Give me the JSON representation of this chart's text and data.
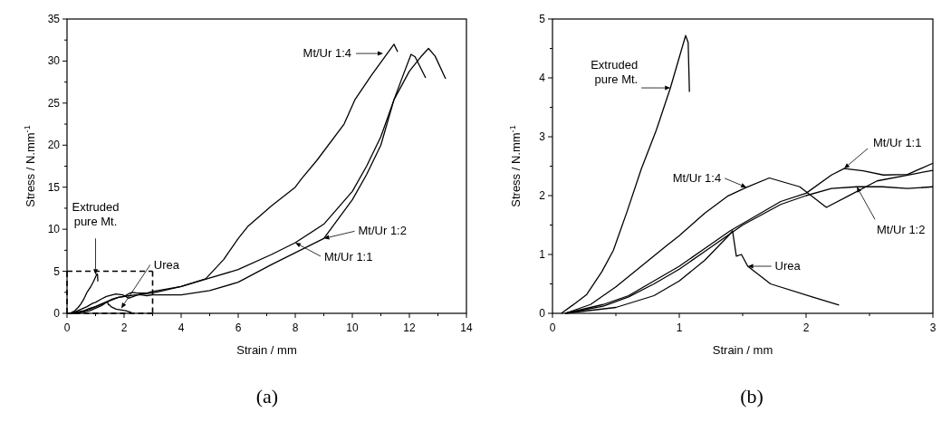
{
  "chart_data": [
    {
      "type": "line",
      "title": "(a)",
      "xlabel": "Strain / mm",
      "ylabel": "Stress / N.mm$^{-1}$",
      "xlim": [
        0,
        14
      ],
      "ylim": [
        0,
        35
      ],
      "xticks": [
        0,
        {
          "value": 1,
          "label": null
        },
        2,
        {
          "value": 3,
          "label": null
        },
        4,
        {
          "value": 5,
          "label": null
        },
        6,
        {
          "value": 7,
          "label": null
        },
        8,
        {
          "value": 9,
          "label": null
        },
        10,
        {
          "value": 11,
          "label": null
        },
        12,
        {
          "value": 13,
          "label": null
        },
        14
      ],
      "yticks": [
        0,
        {
          "value": 2.5,
          "label": null
        },
        5,
        {
          "value": 7.5,
          "label": null
        },
        10,
        {
          "value": 12.5,
          "label": null
        },
        15,
        {
          "value": 17.5,
          "label": null
        },
        20,
        {
          "value": 22.5,
          "label": null
        },
        25,
        {
          "value": 27.5,
          "label": null
        },
        30,
        {
          "value": 32.5,
          "label": null
        },
        35
      ],
      "series": [
        {
          "color": "#000000",
          "x": [
            0.07,
            0.16,
            0.27,
            0.39,
            0.48,
            0.59,
            0.7,
            0.82,
            0.93,
            1.05,
            1.07,
            1.08
          ],
          "values": [
            0,
            0.1,
            0.3,
            0.7,
            1.1,
            1.7,
            2.5,
            3.1,
            3.8,
            4.7,
            4.6,
            3.8
          ]
        },
        {
          "color": "#000000",
          "x": [
            0.1,
            0.5,
            0.8,
            1.0,
            1.2,
            1.38,
            1.42,
            1.45,
            1.49,
            1.54,
            1.72,
            2.06,
            2.26
          ],
          "values": [
            0,
            0.1,
            0.3,
            0.6,
            0.9,
            1.3,
            1.4,
            1.0,
            1.0,
            0.8,
            0.5,
            0.3,
            0.1
          ]
        },
        {
          "color": "#000000",
          "x": [
            0.1,
            0.3,
            0.5,
            0.7,
            0.9,
            1.0,
            1.2,
            1.38,
            1.71,
            1.95,
            2.16,
            2.33,
            2.56,
            3.0,
            4.0,
            4.86,
            5.49,
            6.0,
            6.33,
            7.17,
            8.0,
            8.22,
            8.76,
            9.71,
            10.09,
            10.67,
            11.46,
            11.59
          ],
          "values": [
            0,
            0.2,
            0.5,
            0.8,
            1.2,
            1.3,
            1.7,
            2.0,
            2.3,
            2.2,
            1.8,
            2.0,
            2.3,
            2.4,
            3.2,
            4.1,
            6.4,
            8.9,
            10.3,
            12.8,
            15,
            16,
            18.2,
            22.5,
            25.4,
            28.3,
            32,
            31.1
          ]
        },
        {
          "color": "#000000",
          "x": [
            0.1,
            0.4,
            0.6,
            0.8,
            1.0,
            1.2,
            1.4,
            1.6,
            1.8,
            2.0,
            2.2,
            2.3,
            2.45,
            2.61,
            2.8,
            3.0,
            3.5,
            4.0,
            4.8,
            6.0,
            7.17,
            8.0,
            9.0,
            10.0,
            10.5,
            11.0,
            11.46,
            12.0,
            12.4,
            12.67,
            12.9,
            13.27
          ],
          "values": [
            0,
            0.2,
            0.3,
            0.6,
            0.8,
            1.1,
            1.4,
            1.7,
            1.9,
            2.0,
            2.4,
            2.5,
            2.4,
            2.4,
            2.4,
            2.6,
            2.9,
            3.2,
            4.0,
            5.2,
            7.0,
            8.4,
            10.6,
            14.5,
            17.5,
            21,
            25.4,
            28.8,
            30.5,
            31.5,
            30.6,
            27.9
          ]
        },
        {
          "color": "#000000",
          "x": [
            0.1,
            0.4,
            0.6,
            0.8,
            1.0,
            1.2,
            1.5,
            1.8,
            2.0,
            2.2,
            2.4,
            2.6,
            2.8,
            3.0,
            4.0,
            5.0,
            6.0,
            7.17,
            9.0,
            10.0,
            10.5,
            11.0,
            11.46,
            11.8,
            12.06,
            12.2,
            12.57
          ],
          "values": [
            0,
            0.1,
            0.3,
            0.5,
            0.8,
            1.1,
            1.5,
            1.9,
            2.0,
            2.1,
            2.2,
            2.2,
            2.1,
            2.2,
            2.2,
            2.7,
            3.7,
            5.8,
            8.9,
            13.5,
            16.5,
            20,
            25.4,
            28.5,
            30.8,
            30.5,
            28
          ]
        }
      ],
      "annotations": [
        {
          "text": "Extruded\npure Mt.",
          "x": 1.0,
          "y": 4.6
        },
        {
          "text": "Urea",
          "x": 1.9,
          "y": 0.6
        },
        {
          "text": "Mt/Ur 1:4",
          "x": 11.08,
          "y": 30.9
        },
        {
          "text": "Mt/Ur 1:2",
          "x": 9.0,
          "y": 8.9
        },
        {
          "text": "Mt/Ur 1:1",
          "x": 8.0,
          "y": 8.4
        }
      ]
    },
    {
      "type": "line",
      "title": "(b)",
      "xlabel": "Strain / mm",
      "ylabel": "Stress / N.mm$^{-1}$",
      "xlim": [
        0,
        3
      ],
      "ylim": [
        0,
        5
      ],
      "xticks": [
        0,
        {
          "value": 0.5,
          "label": null
        },
        1,
        {
          "value": 1.5,
          "label": null
        },
        2,
        {
          "value": 2.5,
          "label": null
        },
        3
      ],
      "yticks": [
        0,
        {
          "value": 0.5,
          "label": null
        },
        1,
        {
          "value": 1.5,
          "label": null
        },
        2,
        {
          "value": 2.5,
          "label": null
        },
        3,
        {
          "value": 3.5,
          "label": null
        },
        4,
        {
          "value": 4.5,
          "label": null
        },
        5
      ],
      "series": [
        {
          "color": "#000000",
          "x": [
            0.07,
            0.16,
            0.27,
            0.39,
            0.48,
            0.59,
            0.7,
            0.82,
            0.93,
            1.05,
            1.07,
            1.08
          ],
          "values": [
            0,
            0.14,
            0.32,
            0.71,
            1.07,
            1.74,
            2.45,
            3.12,
            3.83,
            4.72,
            4.6,
            3.76
          ]
        },
        {
          "color": "#000000",
          "x": [
            0.1,
            0.5,
            0.8,
            1.0,
            1.2,
            1.38,
            1.42,
            1.45,
            1.49,
            1.54,
            1.72,
            2.06,
            2.26
          ],
          "values": [
            0,
            0.1,
            0.3,
            0.55,
            0.9,
            1.3,
            1.4,
            0.97,
            1.0,
            0.8,
            0.5,
            0.27,
            0.14
          ]
        },
        {
          "color": "#000000",
          "x": [
            0.1,
            0.3,
            0.5,
            0.7,
            0.9,
            1.0,
            1.2,
            1.38,
            1.53,
            1.71,
            1.95,
            2.16,
            2.33,
            2.56,
            3.0
          ],
          "values": [
            0,
            0.15,
            0.45,
            0.8,
            1.15,
            1.32,
            1.7,
            1.99,
            2.14,
            2.3,
            2.15,
            1.8,
            1.99,
            2.25,
            2.43
          ]
        },
        {
          "color": "#000000",
          "x": [
            0.1,
            0.4,
            0.6,
            0.8,
            1.0,
            1.2,
            1.4,
            1.6,
            1.8,
            2.0,
            2.2,
            2.3,
            2.45,
            2.61,
            2.8,
            3.0
          ],
          "values": [
            0,
            0.15,
            0.3,
            0.55,
            0.8,
            1.1,
            1.4,
            1.65,
            1.9,
            2.04,
            2.35,
            2.46,
            2.42,
            2.35,
            2.36,
            2.55
          ]
        },
        {
          "color": "#000000",
          "x": [
            0.1,
            0.4,
            0.6,
            0.8,
            1.0,
            1.2,
            1.5,
            1.8,
            2.0,
            2.2,
            2.4,
            2.6,
            2.8,
            3.0
          ],
          "values": [
            0,
            0.12,
            0.28,
            0.5,
            0.75,
            1.05,
            1.5,
            1.85,
            2.0,
            2.12,
            2.15,
            2.15,
            2.12,
            2.15
          ]
        }
      ],
      "annotations": [
        {
          "text": "Extruded\npure Mt.",
          "x": 0.93,
          "y": 3.83
        },
        {
          "text": "Mt/Ur 1:4",
          "x": 1.53,
          "y": 2.14
        },
        {
          "text": "Mt/Ur 1:1",
          "x": 2.3,
          "y": 2.46
        },
        {
          "text": "Mt/Ur 1:2",
          "x": 2.4,
          "y": 2.15
        },
        {
          "text": "Urea",
          "x": 1.54,
          "y": 0.8
        }
      ]
    }
  ]
}
